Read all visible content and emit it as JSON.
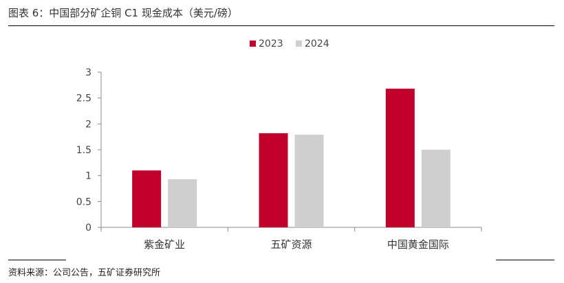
{
  "header": {
    "title": "图表 6：中国部分矿企铜 C1 现金成本（美元/磅）"
  },
  "footer": {
    "source": "资料来源：公司公告，五矿证券研究所"
  },
  "colors": {
    "2023": "#c0002a",
    "2024": "#cfcfcf"
  },
  "chart_data": {
    "type": "bar",
    "title": "",
    "xlabel": "",
    "ylabel": "",
    "categories": [
      "紫金矿业",
      "五矿资源",
      "中国黄金国际"
    ],
    "series": [
      {
        "name": "2023",
        "values": [
          1.1,
          1.82,
          2.68
        ]
      },
      {
        "name": "2024",
        "values": [
          0.93,
          1.79,
          1.5
        ]
      }
    ],
    "ylim": [
      0,
      3
    ],
    "yticks": [
      "0",
      "0.5",
      "1",
      "1.5",
      "2",
      "2.5",
      "3"
    ],
    "grid": false,
    "legend": "top-center"
  }
}
